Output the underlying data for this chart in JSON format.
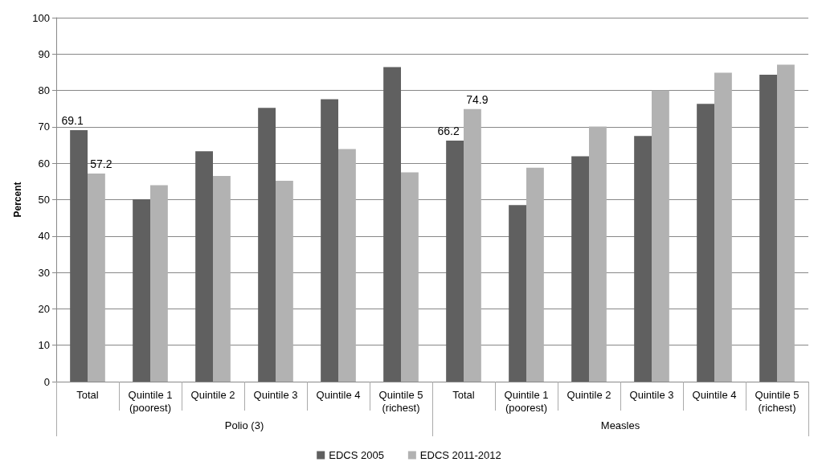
{
  "chart_data": {
    "type": "bar",
    "ylabel": "Percent",
    "categories": [
      "Total",
      "Quintile 1\n(poorest)",
      "Quintile 2",
      "Quintile 3",
      "Quintile 4",
      "Quintile 5\n(richest)",
      "Total",
      "Quintile 1\n(poorest)",
      "Quintile 2",
      "Quintile 3",
      "Quintile 4",
      "Quintile 5\n(richest)"
    ],
    "series": [
      {
        "name": "EDCS 2005",
        "color": "#606060",
        "values": [
          69.1,
          50.1,
          63.3,
          75.2,
          77.6,
          86.4,
          66.2,
          48.5,
          61.9,
          67.5,
          76.3,
          84.3
        ],
        "value_labels": [
          "69.1",
          null,
          null,
          null,
          null,
          null,
          "66.2",
          null,
          null,
          null,
          null,
          null
        ]
      },
      {
        "name": "EDCS 2011-2012",
        "color": "#b2b2b2",
        "values": [
          57.2,
          54.0,
          56.5,
          55.2,
          63.9,
          57.5,
          74.9,
          58.8,
          70.1,
          80.0,
          84.9,
          87.1
        ],
        "value_labels": [
          "57.2",
          null,
          null,
          null,
          null,
          null,
          "74.9",
          null,
          null,
          null,
          null,
          null
        ]
      }
    ],
    "annotations": [
      "Polio (3)",
      "Measles"
    ],
    "ylim": [
      0,
      100
    ],
    "yticks": [
      0,
      10,
      20,
      30,
      40,
      50,
      60,
      70,
      80,
      90,
      100
    ],
    "grid": "y",
    "legend": "bottom"
  }
}
